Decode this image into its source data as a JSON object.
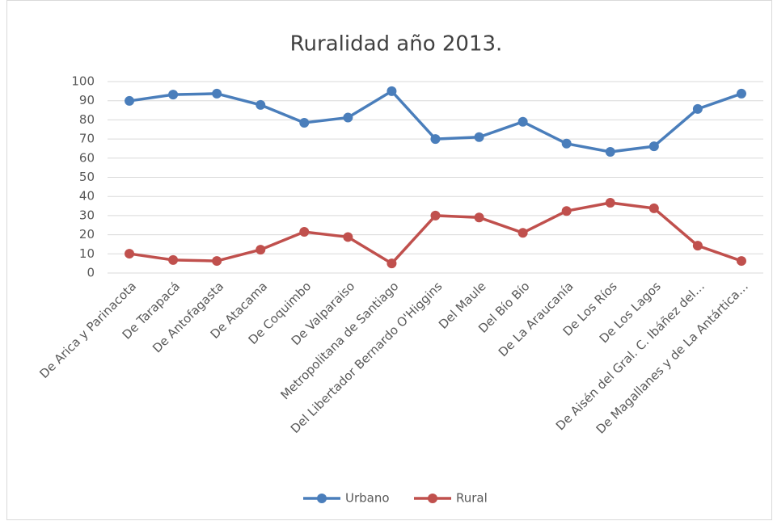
{
  "chart_data": {
    "type": "line",
    "title": "Ruralidad año 2013.",
    "categories": [
      "De Arica y Parinacota",
      "De Tarapacá",
      "De Antofagasta",
      "De Atacama",
      "De Coquimbo",
      "De Valparaiso",
      "Metropolitana de Santiago",
      "Del Libertador Bernardo O'Higgins",
      "Del Maule",
      "Del Bío Bío",
      "De La Araucanía",
      "De Los Ríos",
      "De Los Lagos",
      "De Aisén del Gral. C. Ibáñez del…",
      "De Magallanes y de La Antártica…"
    ],
    "series": [
      {
        "name": "Urbano",
        "color": "#4a7ebb",
        "values": [
          89.9,
          93.2,
          93.7,
          87.8,
          78.5,
          81.2,
          95.0,
          70.0,
          71.0,
          79.0,
          67.6,
          63.3,
          66.2,
          85.7,
          93.7
        ]
      },
      {
        "name": "Rural",
        "color": "#c0504d",
        "values": [
          10.1,
          6.8,
          6.3,
          12.2,
          21.5,
          18.8,
          5.0,
          30.0,
          29.0,
          21.0,
          32.4,
          36.7,
          33.8,
          14.3,
          6.3
        ]
      }
    ],
    "ylim": [
      0,
      100
    ],
    "yticks": [
      0,
      10,
      20,
      30,
      40,
      50,
      60,
      70,
      80,
      90,
      100
    ],
    "grid": true,
    "legend": "bottom"
  }
}
